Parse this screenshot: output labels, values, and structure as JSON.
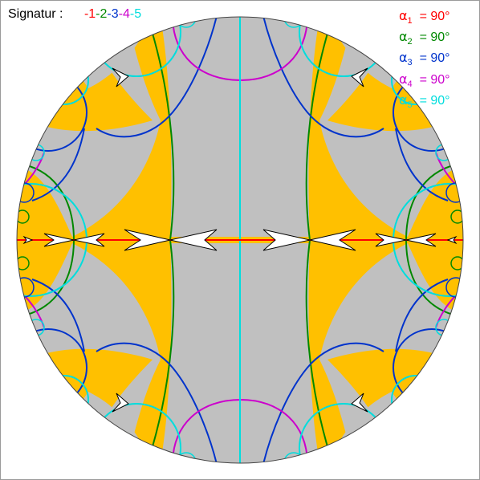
{
  "colors": {
    "orange": "#ffc000",
    "gray": "#c0c0c0",
    "mirror1": "#ff0000",
    "mirror2": "#008800",
    "mirror3": "#0033cc",
    "mirror4": "#cc00cc",
    "mirror5": "#00dddd"
  },
  "signature": {
    "label": "Signatur :",
    "tokens": [
      {
        "text": "-1",
        "color": "#ff0000"
      },
      {
        "text": "-2",
        "color": "#008800"
      },
      {
        "text": "-3",
        "color": "#0033cc"
      },
      {
        "text": "-4",
        "color": "#cc00cc"
      },
      {
        "text": "-5",
        "color": "#00dddd"
      }
    ]
  },
  "angles": [
    {
      "symbol": "α",
      "index": "1",
      "value": "= 90°",
      "color": "#ff0000"
    },
    {
      "symbol": "α",
      "index": "2",
      "value": "= 90°",
      "color": "#008800"
    },
    {
      "symbol": "α",
      "index": "3",
      "value": "= 90°",
      "color": "#0033cc"
    },
    {
      "symbol": "α",
      "index": "4",
      "value": "= 90°",
      "color": "#cc00cc"
    },
    {
      "symbol": "α",
      "index": "5",
      "value": "= 90°",
      "color": "#00dddd"
    }
  ]
}
